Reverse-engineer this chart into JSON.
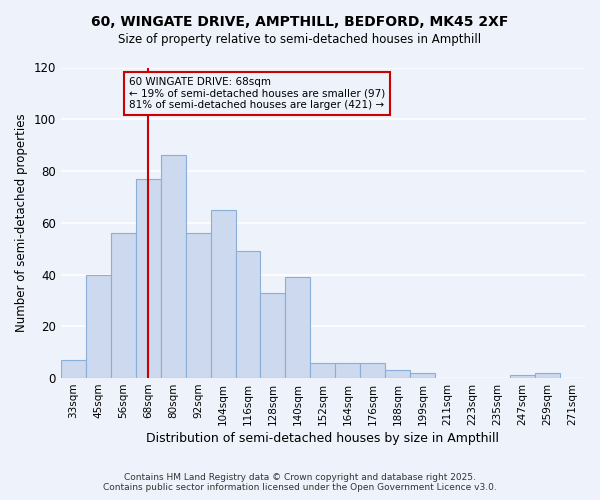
{
  "title_line1": "60, WINGATE DRIVE, AMPTHILL, BEDFORD, MK45 2XF",
  "title_line2": "Size of property relative to semi-detached houses in Ampthill",
  "xlabel": "Distribution of semi-detached houses by size in Ampthill",
  "ylabel": "Number of semi-detached properties",
  "bar_color": "#ccd9ee",
  "bar_edgecolor": "#8ab0d8",
  "bin_labels": [
    "33sqm",
    "45sqm",
    "56sqm",
    "68sqm",
    "80sqm",
    "92sqm",
    "104sqm",
    "116sqm",
    "128sqm",
    "140sqm",
    "152sqm",
    "164sqm",
    "176sqm",
    "188sqm",
    "199sqm",
    "211sqm",
    "223sqm",
    "235sqm",
    "247sqm",
    "259sqm",
    "271sqm"
  ],
  "bar_heights": [
    7,
    40,
    56,
    77,
    86,
    56,
    65,
    49,
    33,
    39,
    6,
    6,
    6,
    3,
    2,
    0,
    0,
    0,
    1,
    2,
    0
  ],
  "ylim": [
    0,
    120
  ],
  "yticks": [
    0,
    20,
    40,
    60,
    80,
    100,
    120
  ],
  "property_line_index": 3,
  "property_label": "60 WINGATE DRIVE: 68sqm",
  "annotation_line1": "← 19% of semi-detached houses are smaller (97)",
  "annotation_line2": "81% of semi-detached houses are larger (421) →",
  "vline_color": "#cc0000",
  "box_edgecolor": "#cc0000",
  "footer_line1": "Contains HM Land Registry data © Crown copyright and database right 2025.",
  "footer_line2": "Contains public sector information licensed under the Open Government Licence v3.0.",
  "background_color": "#eef2fa",
  "grid_color": "#ffffff"
}
